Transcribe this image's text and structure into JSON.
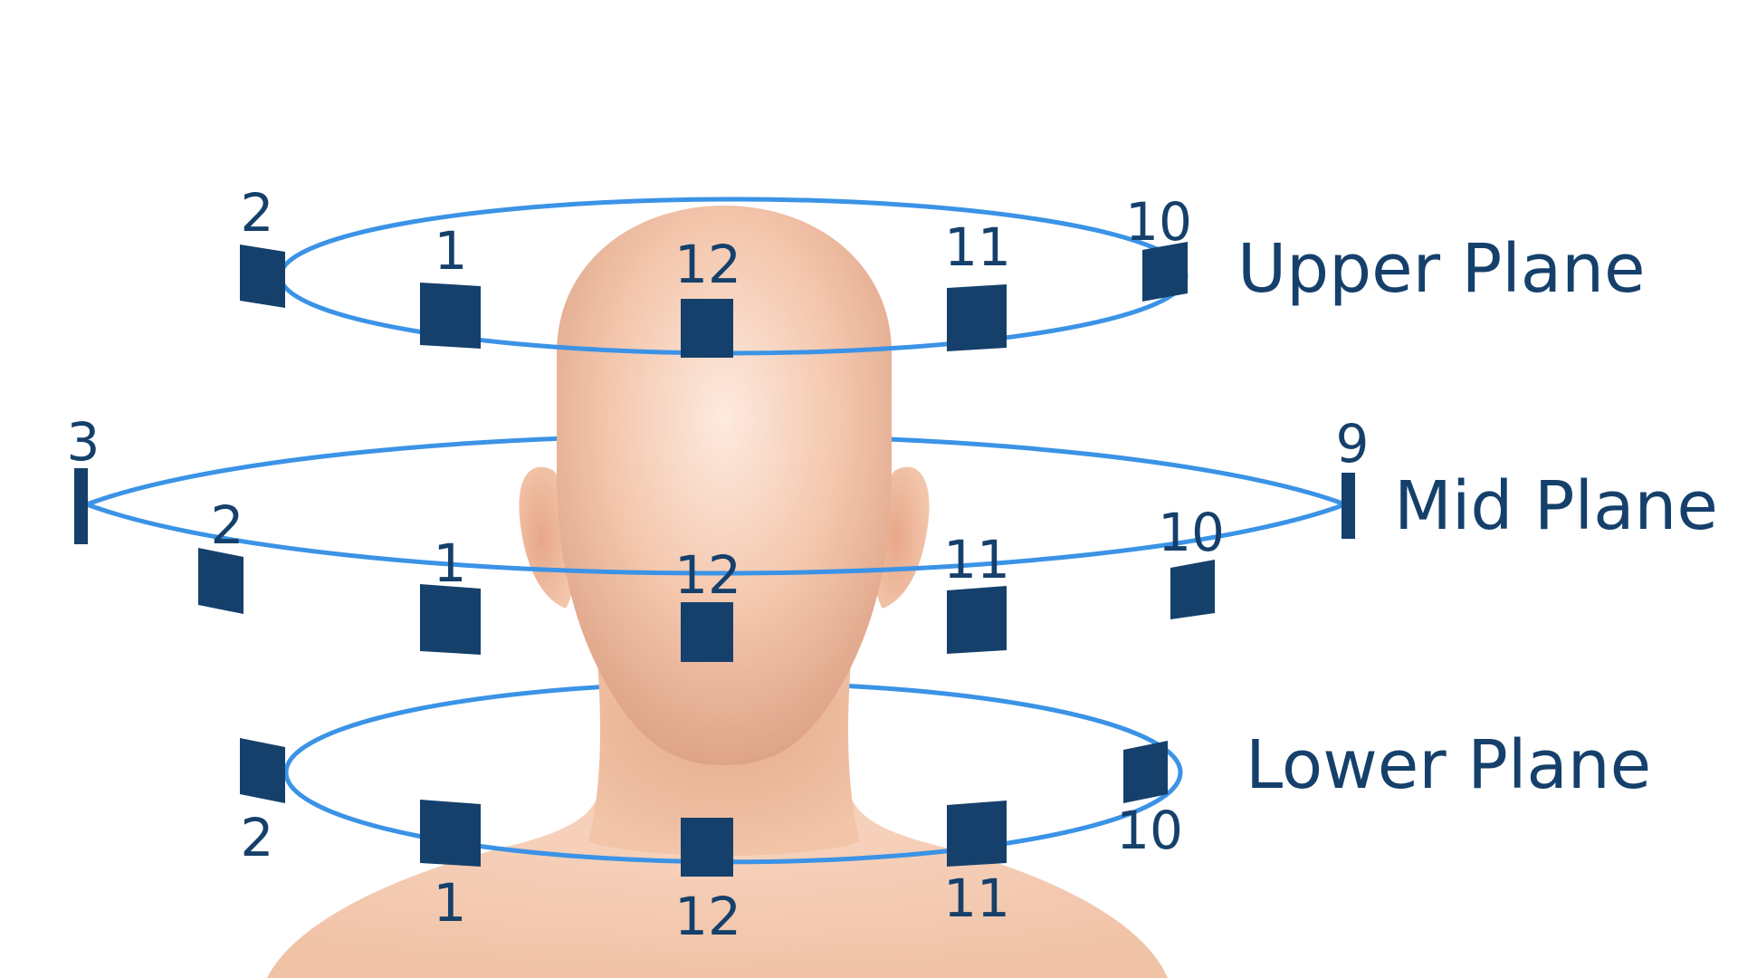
{
  "planes": {
    "upper": {
      "label": "Upper Plane",
      "speakers": [
        {
          "number": "2"
        },
        {
          "number": "1"
        },
        {
          "number": "12"
        },
        {
          "number": "11"
        },
        {
          "number": "10"
        }
      ]
    },
    "mid": {
      "label": "Mid Plane",
      "speakers": [
        {
          "number": "3"
        },
        {
          "number": "2"
        },
        {
          "number": "1"
        },
        {
          "number": "12"
        },
        {
          "number": "11"
        },
        {
          "number": "10"
        },
        {
          "number": "9"
        }
      ]
    },
    "lower": {
      "label": "Lower Plane",
      "speakers": [
        {
          "number": "2"
        },
        {
          "number": "1"
        },
        {
          "number": "12"
        },
        {
          "number": "11"
        },
        {
          "number": "10"
        }
      ]
    }
  },
  "colors": {
    "ring": "#3b93e6",
    "speaker": "#15406b",
    "text": "#15406b",
    "skin_light": "#fbe3d3",
    "skin_mid": "#f0c0a4",
    "skin_dark": "#dba285"
  }
}
